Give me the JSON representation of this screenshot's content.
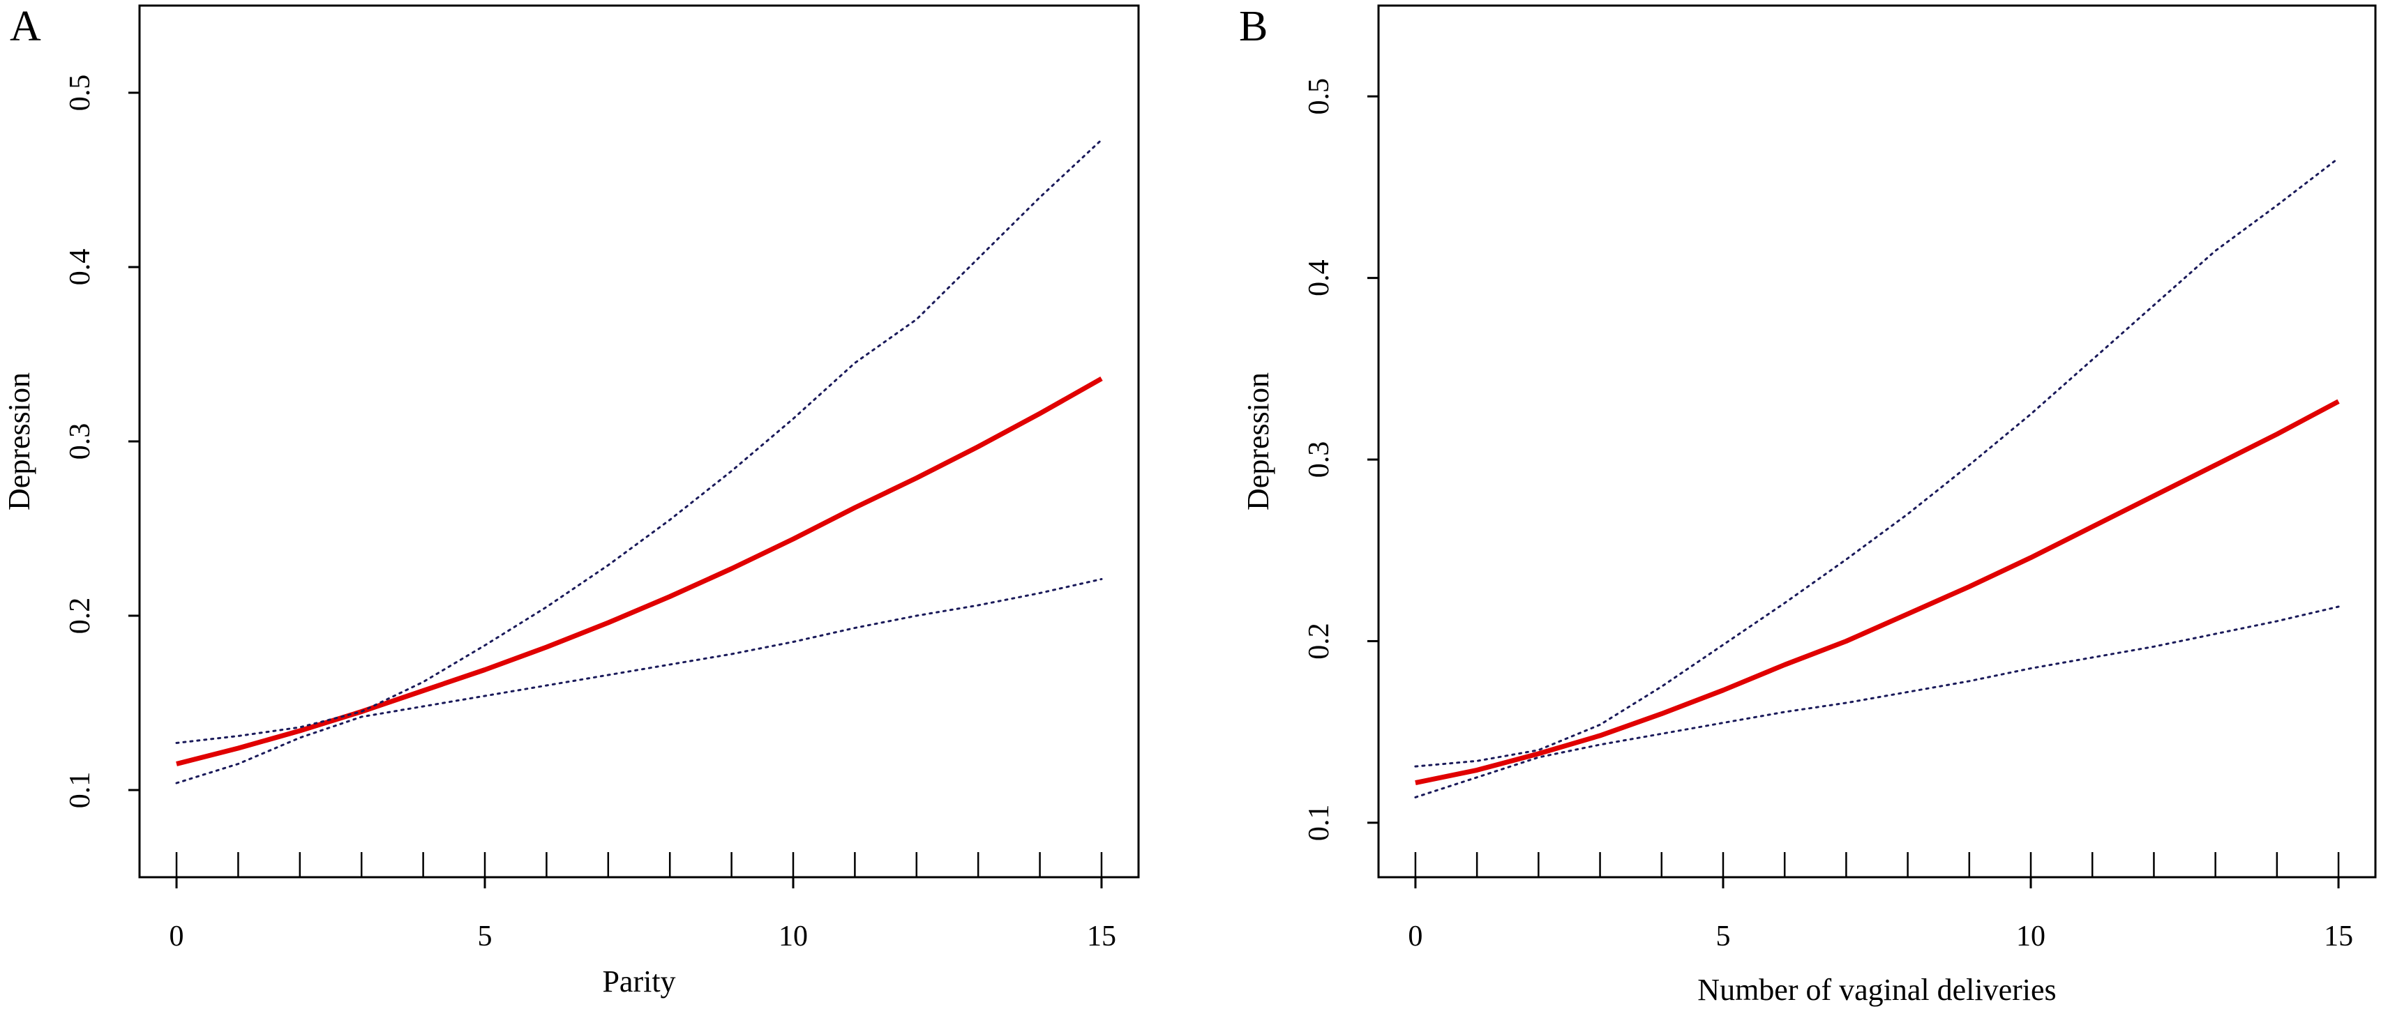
{
  "figure": {
    "panels": [
      {
        "label": "A"
      },
      {
        "label": "B"
      }
    ]
  },
  "chart_data": [
    {
      "type": "line",
      "panel_label": "A",
      "title": "",
      "xlabel": "Parity",
      "ylabel": "Depression",
      "xlim": [
        -0.6,
        15.6
      ],
      "ylim": [
        0.05,
        0.55
      ],
      "xticks": [
        0,
        5,
        10,
        15
      ],
      "xtick_labels": [
        "0",
        "5",
        "10",
        "15"
      ],
      "yticks": [
        0.1,
        0.2,
        0.3,
        0.4,
        0.5
      ],
      "ytick_labels": [
        "0.1",
        "0.2",
        "0.3",
        "0.4",
        "0.5"
      ],
      "grid": false,
      "rug_x": [
        0,
        1,
        2,
        3,
        4,
        5,
        6,
        7,
        8,
        9,
        10,
        11,
        12,
        13,
        14,
        15
      ],
      "x": [
        0,
        1,
        2,
        3,
        4,
        5,
        6,
        7,
        8,
        9,
        10,
        11,
        12,
        13,
        14,
        15
      ],
      "series": [
        {
          "role": "estimate",
          "color": "#e00000",
          "style": "solid",
          "values": [
            0.115,
            0.124,
            0.134,
            0.145,
            0.157,
            0.169,
            0.182,
            0.196,
            0.211,
            0.227,
            0.244,
            0.262,
            0.279,
            0.297,
            0.316,
            0.336
          ]
        },
        {
          "role": "upper-ci",
          "color": "#1a1a5a",
          "style": "dotted",
          "values": [
            0.127,
            0.131,
            0.136,
            0.145,
            0.162,
            0.183,
            0.205,
            0.229,
            0.255,
            0.283,
            0.313,
            0.345,
            0.37,
            0.405,
            0.44,
            0.473
          ]
        },
        {
          "role": "lower-ci",
          "color": "#1a1a5a",
          "style": "dotted",
          "values": [
            0.104,
            0.115,
            0.13,
            0.142,
            0.148,
            0.154,
            0.16,
            0.166,
            0.172,
            0.178,
            0.185,
            0.193,
            0.2,
            0.206,
            0.213,
            0.221
          ]
        }
      ]
    },
    {
      "type": "line",
      "panel_label": "B",
      "title": "",
      "xlabel": "Number of vaginal deliveries",
      "ylabel": "Depression",
      "xlim": [
        -0.6,
        15.6
      ],
      "ylim": [
        0.07,
        0.55
      ],
      "xticks": [
        0,
        5,
        10,
        15
      ],
      "xtick_labels": [
        "0",
        "5",
        "10",
        "15"
      ],
      "yticks": [
        0.1,
        0.2,
        0.3,
        0.4,
        0.5
      ],
      "ytick_labels": [
        "0.1",
        "0.2",
        "0.3",
        "0.4",
        "0.5"
      ],
      "grid": false,
      "rug_x": [
        0,
        1,
        2,
        3,
        4,
        5,
        6,
        7,
        8,
        9,
        10,
        11,
        12,
        13,
        14,
        15
      ],
      "x": [
        0,
        1,
        2,
        3,
        4,
        5,
        6,
        7,
        8,
        9,
        10,
        11,
        12,
        13,
        14,
        15
      ],
      "series": [
        {
          "role": "estimate",
          "color": "#e00000",
          "style": "solid",
          "values": [
            0.122,
            0.129,
            0.138,
            0.148,
            0.16,
            0.173,
            0.187,
            0.2,
            0.215,
            0.23,
            0.246,
            0.263,
            0.28,
            0.297,
            0.314,
            0.332
          ]
        },
        {
          "role": "upper-ci",
          "color": "#1a1a5a",
          "style": "dotted",
          "values": [
            0.131,
            0.134,
            0.14,
            0.154,
            0.175,
            0.198,
            0.221,
            0.245,
            0.27,
            0.297,
            0.325,
            0.355,
            0.385,
            0.415,
            0.44,
            0.466
          ]
        },
        {
          "role": "lower-ci",
          "color": "#1a1a5a",
          "style": "dotted",
          "values": [
            0.114,
            0.125,
            0.136,
            0.143,
            0.149,
            0.155,
            0.161,
            0.166,
            0.172,
            0.178,
            0.185,
            0.191,
            0.197,
            0.204,
            0.211,
            0.219
          ]
        }
      ]
    }
  ]
}
